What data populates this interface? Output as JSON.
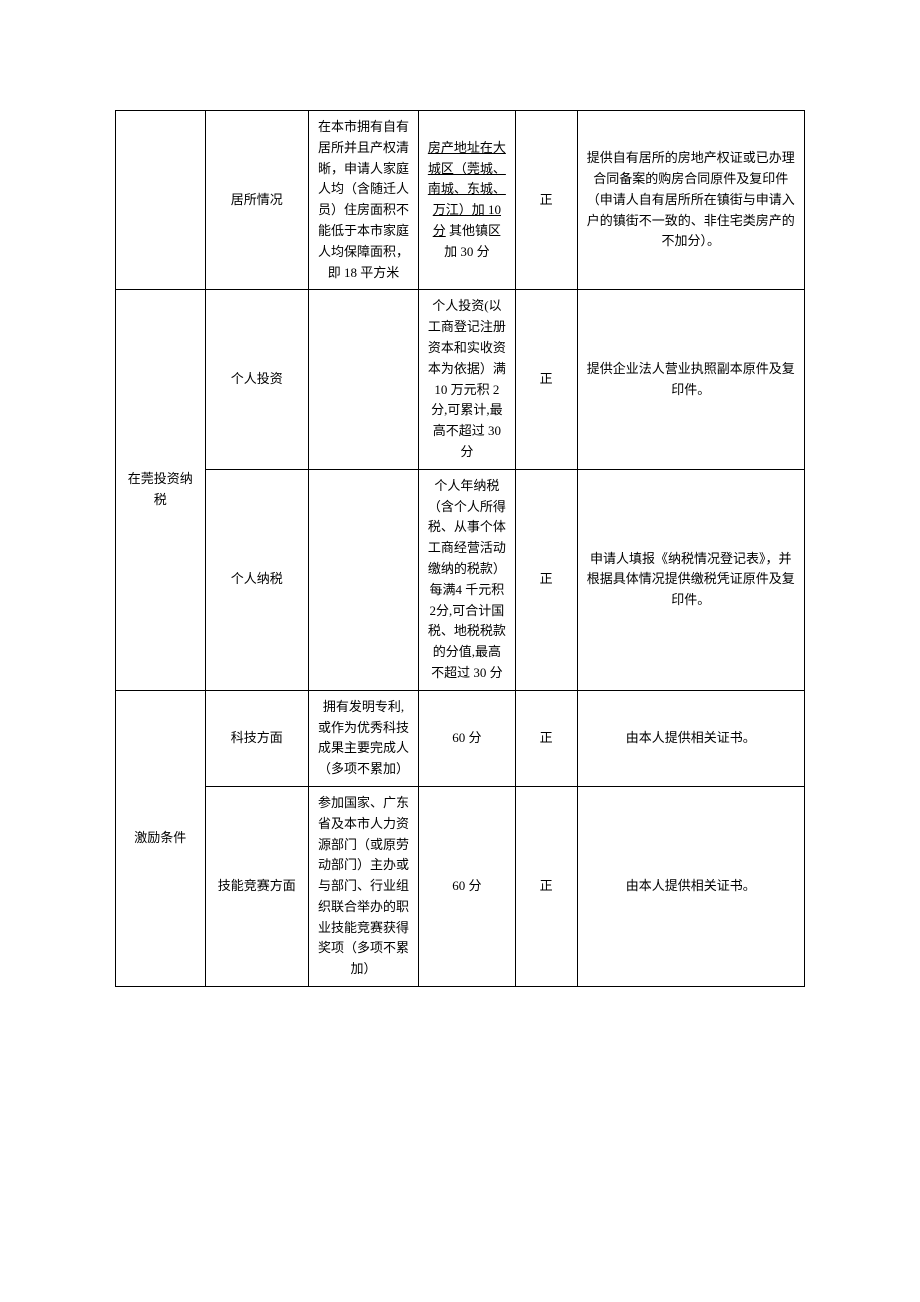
{
  "table": {
    "rows": [
      {
        "c1": "",
        "c2": "居所情况",
        "c3": "在本市拥有自有居所并且产权清晰，申请人家庭人均（含随迁人员）住房面积不能低于本市家庭人均保障面积，即 18 平方米",
        "c4_a": "房产地址在大城区（莞城、南城、东城、万江）加 10 分",
        "c4_b": " 其他镇区加 30 分",
        "c5": "正",
        "c6": "提供自有居所的房地产权证或已办理合同备案的购房合同原件及复印件（申请人自有居所所在镇街与申请入户的镇街不一致的、非住宅类房产的不加分）。"
      },
      {
        "c1": "在莞投资纳税",
        "c2": "个人投资",
        "c3": "",
        "c4": "个人投资(以工商登记注册资本和实收资本为依据）满 10 万元积 2 分,可累计,最高不超过 30 分",
        "c5": "正",
        "c6": "提供企业法人营业执照副本原件及复印件。"
      },
      {
        "c2": "个人纳税",
        "c3": "",
        "c4": "个人年纳税（含个人所得税、从事个体工商经营活动缴纳的税款）每满4 千元积 2分,可合计国税、地税税款的分值,最高不超过 30 分",
        "c5": "正",
        "c6": "申请人填报《纳税情况登记表》，并根据具体情况提供缴税凭证原件及复印件。"
      },
      {
        "c1": "激励条件",
        "c2": "科技方面",
        "c3": "拥有发明专利,或作为优秀科技成果主要完成人（多项不累加）",
        "c4": "60 分",
        "c5": "正",
        "c6": "由本人提供相关证书。"
      },
      {
        "c2": "技能竞赛方面",
        "c3": "参加国家、广东省及本市人力资源部门（或原劳动部门）主办或与部门、行业组织联合举办的职业技能竞赛获得奖项（多项不累加）",
        "c4": "60 分",
        "c5": "正",
        "c6": "由本人提供相关证书。"
      }
    ]
  }
}
